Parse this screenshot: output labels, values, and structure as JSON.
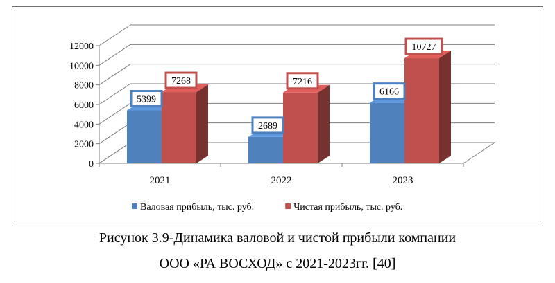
{
  "chart_data": {
    "type": "bar",
    "categories": [
      "2021",
      "2022",
      "2023"
    ],
    "series": [
      {
        "name": "Валовая прибыль, тыс. руб.",
        "values": [
          5399,
          2689,
          6166
        ],
        "color": "#4F81BD"
      },
      {
        "name": "Чистая прибыль, тыс. руб.",
        "values": [
          7268,
          7216,
          10727
        ],
        "color": "#C0504D"
      }
    ],
    "yticks": [
      0,
      2000,
      4000,
      6000,
      8000,
      10000,
      12000
    ],
    "ylim": [
      0,
      12000
    ],
    "legend_position": "bottom",
    "grid": true,
    "three_d": true
  },
  "caption": {
    "line1": "Рисунок 3.9-Динамика валовой и чистой прибыли компании",
    "line2": "ООО «РА ВОСХОД» с 2021-2023гг. [40]"
  }
}
